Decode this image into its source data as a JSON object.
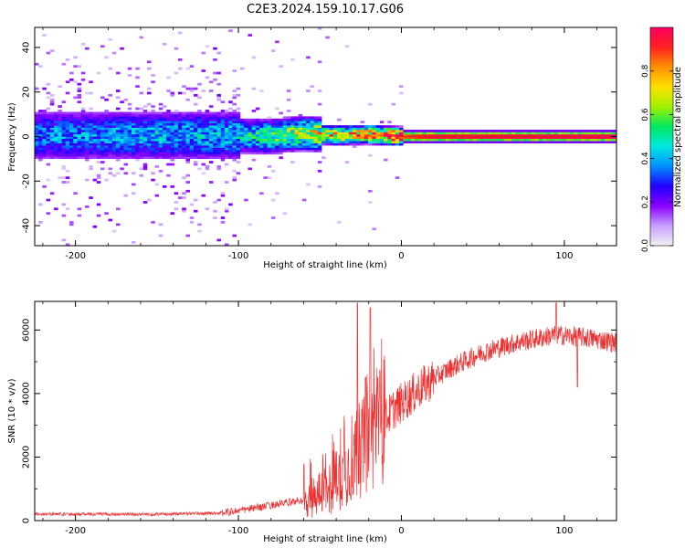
{
  "figure": {
    "title": "C2E3.2024.159.10.17.G06"
  },
  "chart_data": [
    {
      "type": "heatmap",
      "name": "spectrogram",
      "xlabel": "Height of straight line (km)",
      "ylabel": "Frequency (Hz)",
      "xlim": [
        -225,
        132
      ],
      "ylim": [
        -49,
        49
      ],
      "xticks": [
        -200,
        -100,
        0,
        100
      ],
      "xtick_labels": [
        "-200",
        "-100",
        "0",
        "100"
      ],
      "yticks": [
        -40,
        -20,
        0,
        20,
        40
      ],
      "ytick_labels": [
        "-40",
        "-20",
        "0",
        "20",
        "40"
      ],
      "colorbar": {
        "label": "Normalized spectral amplitude",
        "range": [
          0,
          1
        ],
        "ticks": [
          0,
          0.2,
          0.4,
          0.6,
          0.8
        ],
        "tick_labels": [
          "0.0",
          "0.2",
          "0.4",
          "0.6",
          "0.8"
        ],
        "colors": [
          "#f2f2f2",
          "#c8a0ff",
          "#8a00ff",
          "#2000ff",
          "#0090ff",
          "#00e8e0",
          "#00e860",
          "#a0f000",
          "#ffe000",
          "#ff9000",
          "#ff2020",
          "#ff0060"
        ]
      },
      "ridge": [
        {
          "x": -220,
          "freq": 0.5,
          "amp": 0.25
        },
        {
          "x": -100,
          "freq": 0.5,
          "amp": 0.3
        },
        {
          "x": -80,
          "freq": 0,
          "amp": 0.42
        },
        {
          "x": -60,
          "freq": 1.5,
          "amp": 0.5
        },
        {
          "x": -40,
          "freq": 0.5,
          "amp": 0.6
        },
        {
          "x": -20,
          "freq": 1,
          "amp": 0.7
        },
        {
          "x": 0,
          "freq": 0,
          "amp": 0.85
        },
        {
          "x": 20,
          "freq": 0,
          "amp": 0.95
        },
        {
          "x": 130,
          "freq": 0,
          "amp": 1
        }
      ]
    },
    {
      "type": "line",
      "name": "snr",
      "xlabel": "Height of straight line (km)",
      "ylabel": "SNR (10 * v/v)",
      "xlim": [
        -225,
        132
      ],
      "ylim": [
        0,
        6900
      ],
      "xticks": [
        -200,
        -100,
        0,
        100
      ],
      "xtick_labels": [
        "-200",
        "-100",
        "0",
        "100"
      ],
      "yticks": [
        0,
        2000,
        4000,
        6000
      ],
      "ytick_labels": [
        "0",
        "2000",
        "4000",
        "6000"
      ],
      "line_color": "#ee3030",
      "trend": [
        {
          "x": -225,
          "snr": 210
        },
        {
          "x": -150,
          "snr": 200
        },
        {
          "x": -110,
          "snr": 240
        },
        {
          "x": -95,
          "snr": 350
        },
        {
          "x": -80,
          "snr": 480
        },
        {
          "x": -60,
          "snr": 650
        },
        {
          "x": -45,
          "snr": 1000
        },
        {
          "x": -35,
          "snr": 1500
        },
        {
          "x": -25,
          "snr": 2200
        },
        {
          "x": -15,
          "snr": 2900
        },
        {
          "x": -5,
          "snr": 3500
        },
        {
          "x": 5,
          "snr": 3900
        },
        {
          "x": 15,
          "snr": 4300
        },
        {
          "x": 30,
          "snr": 4800
        },
        {
          "x": 50,
          "snr": 5300
        },
        {
          "x": 70,
          "snr": 5600
        },
        {
          "x": 95,
          "snr": 5850
        },
        {
          "x": 115,
          "snr": 5750
        },
        {
          "x": 132,
          "snr": 5600
        }
      ],
      "spikes": [
        {
          "x": -27,
          "snr": 6850
        },
        {
          "x": -19,
          "snr": 6700
        },
        {
          "x": -22,
          "snr": 4500
        },
        {
          "x": 95,
          "snr": 6850
        },
        {
          "x": 108,
          "snr": 4200
        }
      ]
    }
  ]
}
